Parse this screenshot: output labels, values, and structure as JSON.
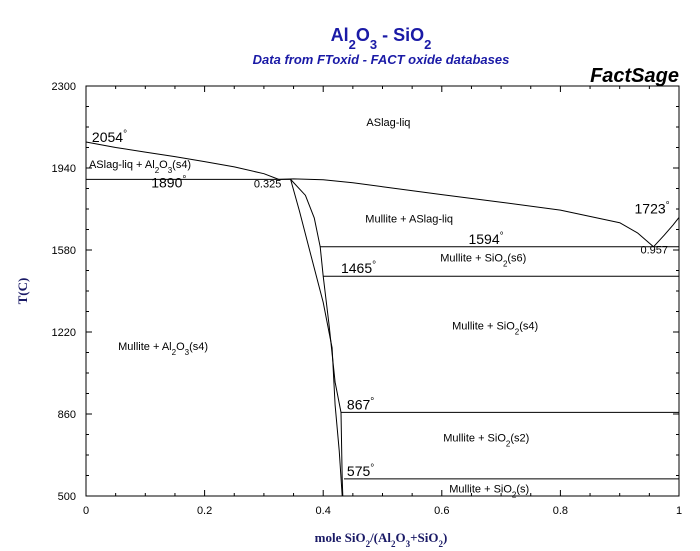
{
  "chart_data": {
    "type": "line",
    "title": "Al2O3 - SiO2",
    "title_parts": [
      {
        "t": "Al",
        "sub": false
      },
      {
        "t": "2",
        "sub": true
      },
      {
        "t": "O",
        "sub": false
      },
      {
        "t": "3",
        "sub": true
      },
      {
        "t": " - SiO",
        "sub": false
      },
      {
        "t": "2",
        "sub": true
      }
    ],
    "subtitle": "Data from FToxid - FACT oxide databases",
    "brand": "FactSage",
    "ylabel": "T(C)",
    "xlabel": "mole SiO2/(Al2O3+SiO2)",
    "xlabel_parts": [
      {
        "t": "mole SiO",
        "sub": false
      },
      {
        "t": "2",
        "sub": true
      },
      {
        "t": "/(Al",
        "sub": false
      },
      {
        "t": "2",
        "sub": true
      },
      {
        "t": "O",
        "sub": false
      },
      {
        "t": "3",
        "sub": true
      },
      {
        "t": "+SiO",
        "sub": false
      },
      {
        "t": "2",
        "sub": true
      },
      {
        "t": ")",
        "sub": false
      }
    ],
    "xlim": [
      0,
      1
    ],
    "ylim": [
      500,
      2300
    ],
    "xticks": [
      {
        "v": 0,
        "label": "0"
      },
      {
        "v": 0.2,
        "label": "0.2"
      },
      {
        "v": 0.4,
        "label": "0.4"
      },
      {
        "v": 0.6,
        "label": "0.6"
      },
      {
        "v": 0.8,
        "label": "0.8"
      },
      {
        "v": 1,
        "label": "1"
      }
    ],
    "yticks": [
      {
        "v": 500,
        "label": "500"
      },
      {
        "v": 860,
        "label": "860"
      },
      {
        "v": 1220,
        "label": "1220"
      },
      {
        "v": 1580,
        "label": "1580"
      },
      {
        "v": 1940,
        "label": "1940"
      },
      {
        "v": 2300,
        "label": "2300"
      }
    ],
    "grid": false,
    "lines": [
      {
        "name": "liquidus-left",
        "points": [
          [
            0,
            2054
          ],
          [
            0.05,
            2030
          ],
          [
            0.1,
            2010
          ],
          [
            0.15,
            1990
          ],
          [
            0.2,
            1968
          ],
          [
            0.25,
            1945
          ],
          [
            0.3,
            1915
          ],
          [
            0.325,
            1890
          ]
        ]
      },
      {
        "name": "liquidus-mullite",
        "points": [
          [
            0.325,
            1890
          ],
          [
            0.35,
            1892
          ],
          [
            0.4,
            1888
          ],
          [
            0.45,
            1875
          ],
          [
            0.5,
            1858
          ],
          [
            0.6,
            1823
          ],
          [
            0.7,
            1790
          ],
          [
            0.8,
            1755
          ],
          [
            0.9,
            1700
          ],
          [
            0.93,
            1655
          ],
          [
            0.957,
            1594
          ]
        ]
      },
      {
        "name": "liquidus-right",
        "points": [
          [
            0.957,
            1594
          ],
          [
            0.975,
            1645
          ],
          [
            0.99,
            1690
          ],
          [
            1.0,
            1723
          ]
        ]
      },
      {
        "name": "eutectic-1890",
        "points": [
          [
            0,
            1890
          ],
          [
            0.345,
            1890
          ]
        ]
      },
      {
        "name": "eutectic-1594",
        "points": [
          [
            0.395,
            1594
          ],
          [
            1.0,
            1594
          ]
        ]
      },
      {
        "name": "transition-1465",
        "points": [
          [
            0.4,
            1465
          ],
          [
            1.0,
            1465
          ]
        ]
      },
      {
        "name": "transition-867",
        "points": [
          [
            0.43,
            867
          ],
          [
            1.0,
            867
          ]
        ]
      },
      {
        "name": "transition-575",
        "points": [
          [
            0.435,
            575
          ],
          [
            1.0,
            575
          ]
        ]
      },
      {
        "name": "mullite-solvus-left",
        "points": [
          [
            0.345,
            1890
          ],
          [
            0.36,
            1750
          ],
          [
            0.38,
            1550
          ],
          [
            0.4,
            1350
          ],
          [
            0.415,
            1150
          ],
          [
            0.42,
            900
          ],
          [
            0.427,
            700
          ],
          [
            0.432,
            500
          ]
        ]
      },
      {
        "name": "mullite-solvus-right",
        "points": [
          [
            0.345,
            1890
          ],
          [
            0.37,
            1820
          ],
          [
            0.385,
            1720
          ],
          [
            0.395,
            1594
          ],
          [
            0.4,
            1465
          ],
          [
            0.41,
            1250
          ],
          [
            0.42,
            1000
          ],
          [
            0.43,
            867
          ],
          [
            0.432,
            575
          ],
          [
            0.433,
            500
          ]
        ]
      }
    ],
    "point_labels": [
      {
        "text": "2054",
        "degree": true,
        "x": 0.01,
        "y": 2054,
        "size": 14
      },
      {
        "text": "1890",
        "degree": true,
        "x": 0.11,
        "y": 1855,
        "size": 14
      },
      {
        "text": "0.325",
        "degree": false,
        "x": 0.283,
        "y": 1855,
        "size": 11
      },
      {
        "text": "1723",
        "degree": true,
        "x": 0.925,
        "y": 1740,
        "size": 14
      },
      {
        "text": "1594",
        "degree": true,
        "x": 0.645,
        "y": 1607,
        "size": 14
      },
      {
        "text": "0.957",
        "degree": false,
        "x": 0.935,
        "y": 1565,
        "size": 11
      },
      {
        "text": "1465",
        "degree": true,
        "x": 0.43,
        "y": 1478,
        "size": 14
      },
      {
        "text": "867",
        "degree": true,
        "x": 0.44,
        "y": 880,
        "size": 14
      },
      {
        "text": "575",
        "degree": true,
        "x": 0.44,
        "y": 588,
        "size": 14
      }
    ],
    "region_labels": [
      {
        "x": 0.51,
        "y": 2125,
        "parts": [
          {
            "t": "ASlag-liq",
            "sub": false
          }
        ]
      },
      {
        "x": 0.005,
        "y": 1940,
        "anchor": "start",
        "parts": [
          {
            "t": "ASlag-liq + Al",
            "sub": false
          },
          {
            "t": "2",
            "sub": true
          },
          {
            "t": "O",
            "sub": false
          },
          {
            "t": "3",
            "sub": true
          },
          {
            "t": "(s4)",
            "sub": false
          }
        ]
      },
      {
        "x": 0.545,
        "y": 1700,
        "parts": [
          {
            "t": "Mullite + ASlag-liq",
            "sub": false
          }
        ]
      },
      {
        "x": 0.67,
        "y": 1530,
        "parts": [
          {
            "t": "Mullite + SiO",
            "sub": false
          },
          {
            "t": "2",
            "sub": true
          },
          {
            "t": "(s6)",
            "sub": false
          }
        ]
      },
      {
        "x": 0.69,
        "y": 1230,
        "parts": [
          {
            "t": "Mullite + SiO",
            "sub": false
          },
          {
            "t": "2",
            "sub": true
          },
          {
            "t": "(s4)",
            "sub": false
          }
        ]
      },
      {
        "x": 0.13,
        "y": 1140,
        "parts": [
          {
            "t": "Mullite + Al",
            "sub": false
          },
          {
            "t": "2",
            "sub": true
          },
          {
            "t": "O",
            "sub": false
          },
          {
            "t": "3",
            "sub": true
          },
          {
            "t": "(s4)",
            "sub": false
          }
        ]
      },
      {
        "x": 0.675,
        "y": 740,
        "parts": [
          {
            "t": "Mullite + SiO",
            "sub": false
          },
          {
            "t": "2",
            "sub": true
          },
          {
            "t": "(s2)",
            "sub": false
          }
        ]
      },
      {
        "x": 0.68,
        "y": 515,
        "parts": [
          {
            "t": "Mullite + SiO",
            "sub": false
          },
          {
            "t": "2",
            "sub": true
          },
          {
            "t": "(s)",
            "sub": false
          }
        ]
      }
    ],
    "colors": {
      "title": "#1a1aa6",
      "subtitle": "#1a1aa6",
      "axis_label": "#1a1a66",
      "line": "#000000",
      "brand": "#000000"
    }
  }
}
